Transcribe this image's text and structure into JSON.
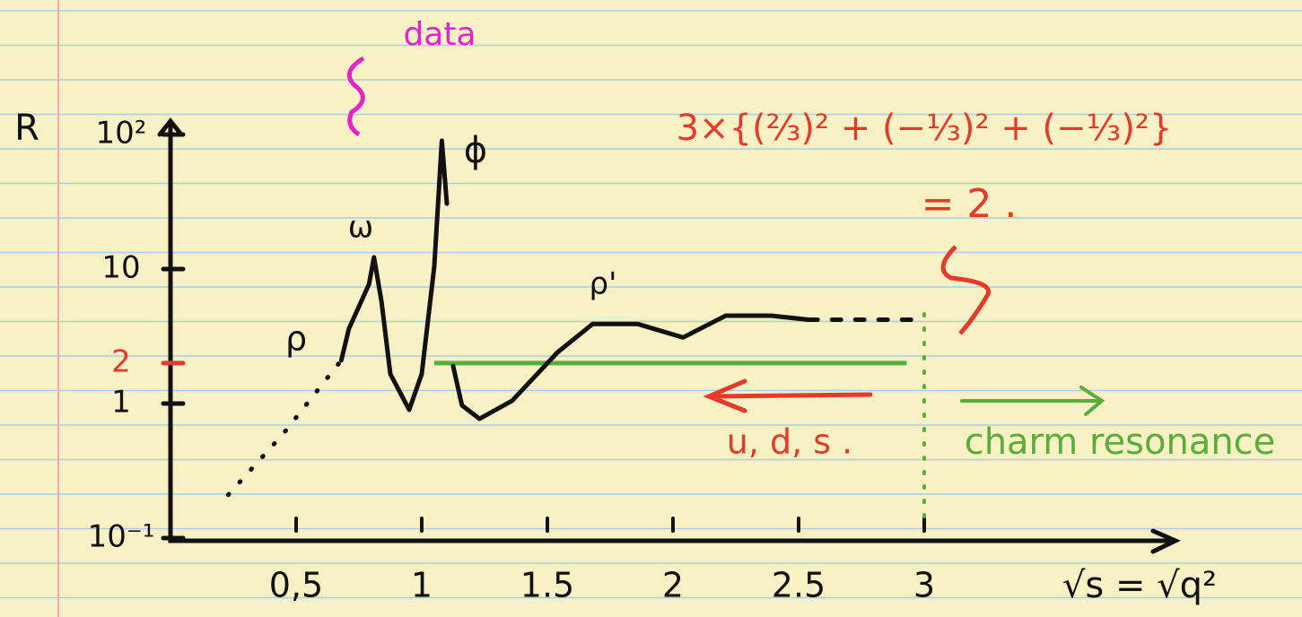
{
  "chart_data": {
    "type": "line",
    "y_label": "R",
    "x_label": "√s = √q²",
    "log_y": true,
    "xlim": [
      0,
      4
    ],
    "ylim": [
      0.1,
      100
    ],
    "xticks": [
      {
        "value": 0.5,
        "label": "0,5"
      },
      1,
      1.5,
      2,
      2.5,
      3
    ],
    "yticks": [
      {
        "value": 0.1,
        "label": "10⁻¹"
      },
      1,
      2,
      10,
      {
        "value": 100,
        "label": "10²"
      }
    ],
    "ytick_colors": [
      "#111111",
      "#111111",
      "#e53a2a",
      "#111111",
      "#111111"
    ],
    "series": [
      {
        "color": "#111111",
        "dash": "dotted",
        "x": [
          0.23,
          0.45,
          0.68
        ],
        "values": [
          0.21,
          0.6,
          2.1
        ]
      },
      {
        "color": "#111111",
        "dash": "solid",
        "x": [
          0.68,
          0.71,
          0.79,
          0.81,
          0.84,
          0.875,
          0.95,
          1.0,
          1.05,
          1.08,
          1.1,
          null,
          1.125,
          1.16,
          1.23,
          1.36,
          1.54,
          1.68,
          1.86,
          2.04,
          2.21,
          2.39,
          2.54
        ],
        "values": [
          2.1,
          3.6,
          7.7,
          12.2,
          5.7,
          1.66,
          0.9,
          1.66,
          10.5,
          90,
          30.6,
          null,
          1.9,
          0.97,
          0.77,
          1.05,
          2.4,
          3.9,
          3.9,
          3.1,
          4.5,
          4.5,
          4.2
        ]
      },
      {
        "color": "#111111",
        "dash": "dashed",
        "x": [
          2.54,
          2.96
        ],
        "values": [
          4.2,
          4.2
        ]
      }
    ],
    "reference_line": {
      "value": 2,
      "x": [
        1.05,
        2.93
      ],
      "color": "#5aad3a"
    },
    "threshold": {
      "x": 3,
      "color": "#5aad3a"
    },
    "annotations": {
      "data": "data",
      "rho": "ρ",
      "omega": "ω",
      "phi": "ϕ",
      "rho_prime": "ρ'",
      "formula": "3×{(⅔)² + (−⅓)² + (−⅓)²}",
      "equals": "= 2 .",
      "uds": "u, d, s .",
      "charm": "charm resonance"
    }
  }
}
